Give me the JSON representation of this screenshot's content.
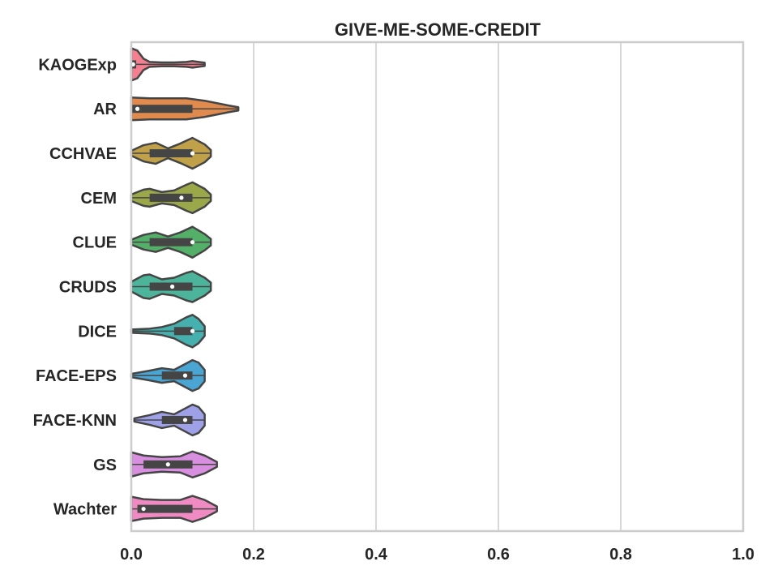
{
  "chart_data": {
    "type": "violin",
    "title": "GIVE-ME-SOME-CREDIT",
    "xlabel": "",
    "ylabel": "",
    "xlim": [
      0.0,
      1.0
    ],
    "xticks": [
      "0.0",
      "0.2",
      "0.4",
      "0.6",
      "0.8",
      "1.0"
    ],
    "grid": true,
    "orientation": "horizontal",
    "categories": [
      "KAOGExp",
      "AR",
      "CCHVAE",
      "CEM",
      "CLUE",
      "CRUDS",
      "DICE",
      "FACE-EPS",
      "FACE-KNN",
      "GS",
      "Wachter"
    ],
    "series": [
      {
        "category": "KAOGExp",
        "color": "#f37f91",
        "min": 0.0,
        "max": 0.12,
        "q1": 0.0,
        "median": 0.003,
        "q3": 0.008,
        "density": [
          [
            0.0,
            1.0
          ],
          [
            0.01,
            0.85
          ],
          [
            0.02,
            0.35
          ],
          [
            0.03,
            0.15
          ],
          [
            0.05,
            0.12
          ],
          [
            0.07,
            0.12
          ],
          [
            0.09,
            0.15
          ],
          [
            0.1,
            0.2
          ],
          [
            0.11,
            0.15
          ],
          [
            0.12,
            0.1
          ]
        ]
      },
      {
        "category": "AR",
        "color": "#e08a4e",
        "min": 0.0,
        "max": 0.175,
        "q1": 0.0,
        "median": 0.01,
        "q3": 0.1,
        "density": [
          [
            0.0,
            0.7
          ],
          [
            0.03,
            0.65
          ],
          [
            0.06,
            0.65
          ],
          [
            0.09,
            0.65
          ],
          [
            0.1,
            0.6
          ],
          [
            0.12,
            0.5
          ],
          [
            0.14,
            0.35
          ],
          [
            0.16,
            0.2
          ],
          [
            0.175,
            0.1
          ]
        ]
      },
      {
        "category": "CCHVAE",
        "color": "#c1a04a",
        "min": 0.0,
        "max": 0.13,
        "q1": 0.03,
        "median": 0.1,
        "q3": 0.1,
        "density": [
          [
            0.0,
            0.15
          ],
          [
            0.02,
            0.5
          ],
          [
            0.04,
            0.65
          ],
          [
            0.06,
            0.3
          ],
          [
            0.08,
            0.6
          ],
          [
            0.1,
            0.95
          ],
          [
            0.12,
            0.55
          ],
          [
            0.13,
            0.2
          ]
        ]
      },
      {
        "category": "CEM",
        "color": "#9aa84a",
        "min": 0.0,
        "max": 0.13,
        "q1": 0.03,
        "median": 0.082,
        "q3": 0.1,
        "density": [
          [
            0.0,
            0.2
          ],
          [
            0.02,
            0.5
          ],
          [
            0.03,
            0.55
          ],
          [
            0.05,
            0.35
          ],
          [
            0.07,
            0.45
          ],
          [
            0.09,
            0.8
          ],
          [
            0.1,
            0.95
          ],
          [
            0.12,
            0.55
          ],
          [
            0.13,
            0.2
          ]
        ]
      },
      {
        "category": "CLUE",
        "color": "#54b069",
        "min": 0.0,
        "max": 0.13,
        "q1": 0.03,
        "median": 0.1,
        "q3": 0.1,
        "density": [
          [
            0.0,
            0.15
          ],
          [
            0.02,
            0.45
          ],
          [
            0.04,
            0.6
          ],
          [
            0.06,
            0.35
          ],
          [
            0.08,
            0.6
          ],
          [
            0.1,
            0.95
          ],
          [
            0.12,
            0.5
          ],
          [
            0.13,
            0.2
          ]
        ]
      },
      {
        "category": "CRUDS",
        "color": "#4cb49a",
        "min": 0.0,
        "max": 0.13,
        "q1": 0.03,
        "median": 0.067,
        "q3": 0.1,
        "density": [
          [
            0.0,
            0.3
          ],
          [
            0.02,
            0.7
          ],
          [
            0.03,
            0.75
          ],
          [
            0.05,
            0.45
          ],
          [
            0.07,
            0.55
          ],
          [
            0.09,
            0.85
          ],
          [
            0.1,
            0.95
          ],
          [
            0.12,
            0.55
          ],
          [
            0.13,
            0.25
          ]
        ]
      },
      {
        "category": "DICE",
        "color": "#45b0ad",
        "min": 0.0,
        "max": 0.12,
        "q1": 0.07,
        "median": 0.1,
        "q3": 0.1,
        "density": [
          [
            0.0,
            0.1
          ],
          [
            0.03,
            0.15
          ],
          [
            0.05,
            0.25
          ],
          [
            0.07,
            0.45
          ],
          [
            0.09,
            0.85
          ],
          [
            0.1,
            1.0
          ],
          [
            0.11,
            0.75
          ],
          [
            0.12,
            0.3
          ]
        ]
      },
      {
        "category": "FACE-EPS",
        "color": "#4aa5d2",
        "min": 0.0,
        "max": 0.12,
        "q1": 0.05,
        "median": 0.088,
        "q3": 0.1,
        "density": [
          [
            0.0,
            0.1
          ],
          [
            0.03,
            0.3
          ],
          [
            0.05,
            0.45
          ],
          [
            0.07,
            0.35
          ],
          [
            0.09,
            0.75
          ],
          [
            0.1,
            0.95
          ],
          [
            0.11,
            0.8
          ],
          [
            0.12,
            0.35
          ]
        ]
      },
      {
        "category": "FACE-KNN",
        "color": "#9fa1e8",
        "min": 0.005,
        "max": 0.12,
        "q1": 0.05,
        "median": 0.088,
        "q3": 0.1,
        "density": [
          [
            0.005,
            0.1
          ],
          [
            0.03,
            0.3
          ],
          [
            0.05,
            0.5
          ],
          [
            0.07,
            0.35
          ],
          [
            0.09,
            0.75
          ],
          [
            0.1,
            0.95
          ],
          [
            0.11,
            0.8
          ],
          [
            0.12,
            0.35
          ]
        ]
      },
      {
        "category": "GS",
        "color": "#d98fe0",
        "min": 0.0,
        "max": 0.14,
        "q1": 0.02,
        "median": 0.06,
        "q3": 0.1,
        "density": [
          [
            0.0,
            0.75
          ],
          [
            0.02,
            0.55
          ],
          [
            0.05,
            0.45
          ],
          [
            0.08,
            0.5
          ],
          [
            0.1,
            0.8
          ],
          [
            0.12,
            0.55
          ],
          [
            0.14,
            0.15
          ]
        ]
      },
      {
        "category": "Wachter",
        "color": "#ef8bc2",
        "min": 0.0,
        "max": 0.14,
        "q1": 0.01,
        "median": 0.02,
        "q3": 0.1,
        "density": [
          [
            0.0,
            0.75
          ],
          [
            0.02,
            0.6
          ],
          [
            0.05,
            0.55
          ],
          [
            0.08,
            0.55
          ],
          [
            0.1,
            0.8
          ],
          [
            0.12,
            0.55
          ],
          [
            0.14,
            0.15
          ]
        ]
      }
    ]
  }
}
